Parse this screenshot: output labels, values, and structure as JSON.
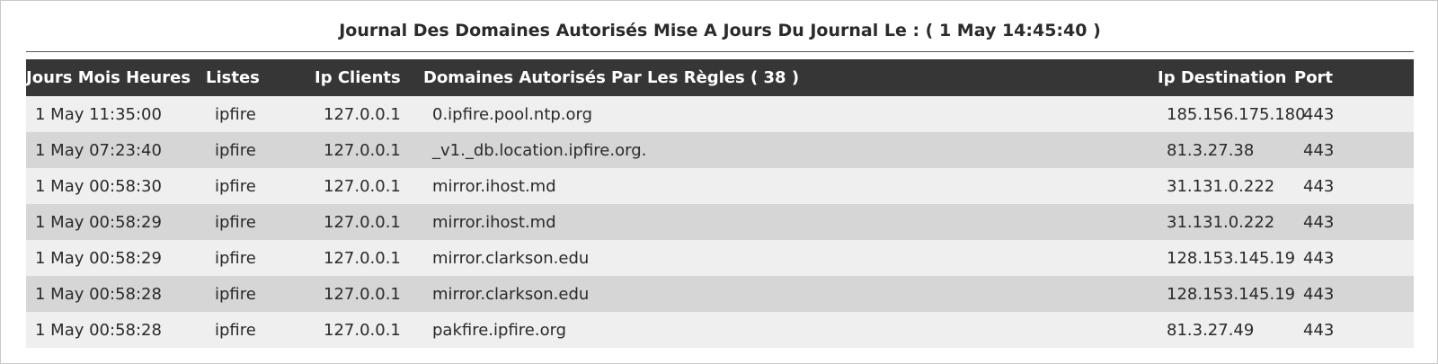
{
  "page": {
    "title": "Journal Des Domaines Autorisés Mise A Jours Du Journal Le : ( 1 May 14:45:40 )"
  },
  "table": {
    "headers": {
      "date": "Jours Mois Heures",
      "list": "Listes",
      "ip_client": "Ip Clients",
      "domain": "Domaines Autorisés Par Les Règles ( 38 )",
      "ip_destination": "Ip Destination",
      "port": "Port"
    },
    "rows": [
      {
        "date": "1 May 11:35:00",
        "list": "ipfire",
        "ip_client": "127.0.0.1",
        "domain": "0.ipfire.pool.ntp.org",
        "ip_destination": "185.156.175.180",
        "port": "443"
      },
      {
        "date": "1 May 07:23:40",
        "list": "ipfire",
        "ip_client": "127.0.0.1",
        "domain": "_v1._db.location.ipfire.org.",
        "ip_destination": "81.3.27.38",
        "port": "443"
      },
      {
        "date": "1 May 00:58:30",
        "list": "ipfire",
        "ip_client": "127.0.0.1",
        "domain": "mirror.ihost.md",
        "ip_destination": "31.131.0.222",
        "port": "443"
      },
      {
        "date": "1 May 00:58:29",
        "list": "ipfire",
        "ip_client": "127.0.0.1",
        "domain": "mirror.ihost.md",
        "ip_destination": "31.131.0.222",
        "port": "443"
      },
      {
        "date": "1 May 00:58:29",
        "list": "ipfire",
        "ip_client": "127.0.0.1",
        "domain": "mirror.clarkson.edu",
        "ip_destination": "128.153.145.19",
        "port": "443"
      },
      {
        "date": "1 May 00:58:28",
        "list": "ipfire",
        "ip_client": "127.0.0.1",
        "domain": "mirror.clarkson.edu",
        "ip_destination": "128.153.145.19",
        "port": "443"
      },
      {
        "date": "1 May 00:58:28",
        "list": "ipfire",
        "ip_client": "127.0.0.1",
        "domain": "pakfire.ipfire.org",
        "ip_destination": "81.3.27.49",
        "port": "443"
      }
    ]
  },
  "colors": {
    "header_bg": "#363636",
    "row_odd": "#efefef",
    "row_even": "#d6d6d6"
  }
}
